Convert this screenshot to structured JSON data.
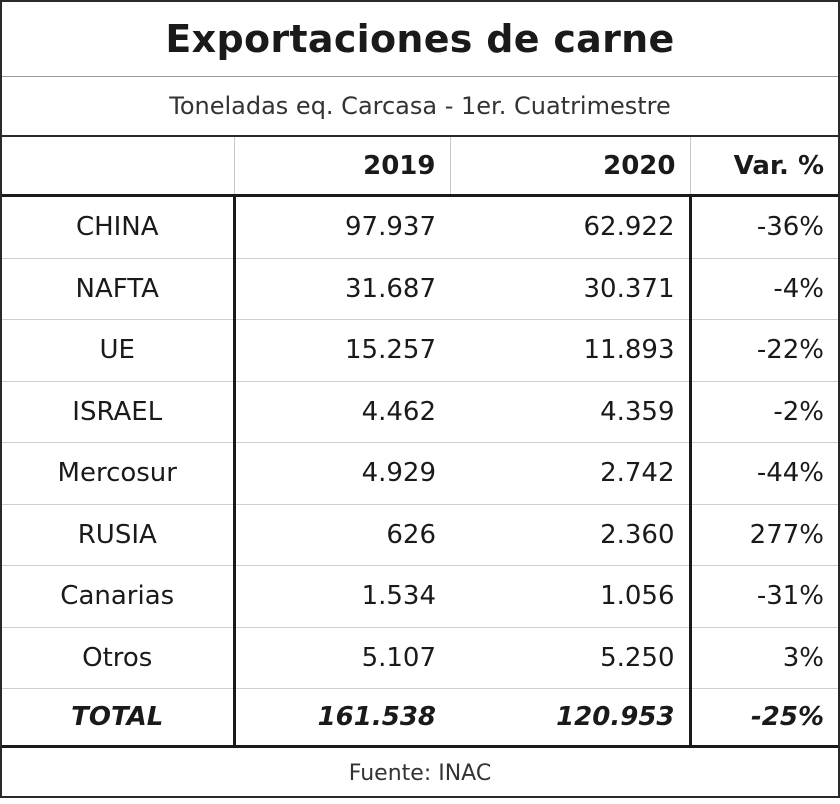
{
  "chart_data": {
    "type": "table",
    "title": "Exportaciones de carne",
    "subtitle": "Toneladas eq. Carcasa - 1er. Cuatrimestre",
    "columns": [
      "",
      "2019",
      "2020",
      "Var. %"
    ],
    "rows": [
      {
        "name": "CHINA",
        "y2019": "97.937",
        "y2020": "62.922",
        "var": "-36%"
      },
      {
        "name": "NAFTA",
        "y2019": "31.687",
        "y2020": "30.371",
        "var": "-4%"
      },
      {
        "name": "UE",
        "y2019": "15.257",
        "y2020": "11.893",
        "var": "-22%"
      },
      {
        "name": "ISRAEL",
        "y2019": "4.462",
        "y2020": "4.359",
        "var": "-2%"
      },
      {
        "name": "Mercosur",
        "y2019": "4.929",
        "y2020": "2.742",
        "var": "-44%"
      },
      {
        "name": "RUSIA",
        "y2019": "626",
        "y2020": "2.360",
        "var": "277%"
      },
      {
        "name": "Canarias",
        "y2019": "1.534",
        "y2020": "1.056",
        "var": "-31%"
      },
      {
        "name": "Otros",
        "y2019": "5.107",
        "y2020": "5.250",
        "var": "3%"
      }
    ],
    "total": {
      "name": "TOTAL",
      "y2019": "161.538",
      "y2020": "120.953",
      "var": "-25%"
    },
    "source": "Fuente: INAC"
  }
}
